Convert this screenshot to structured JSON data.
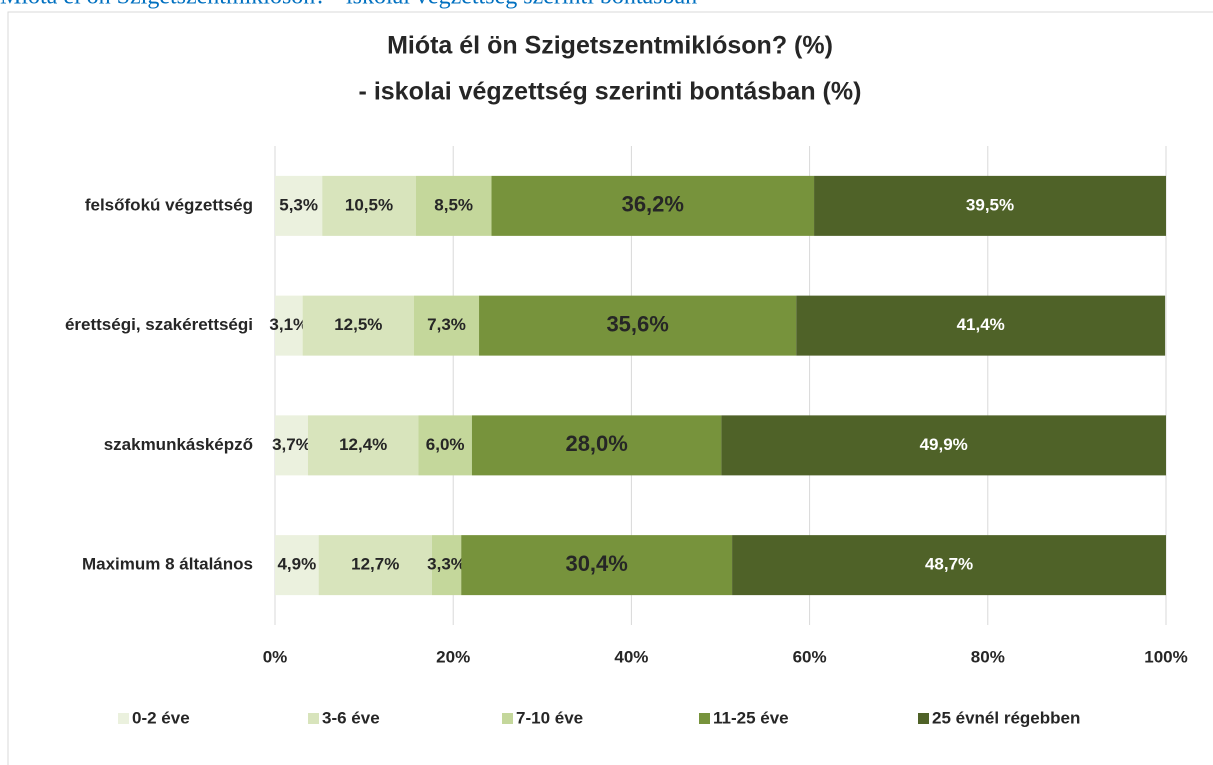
{
  "heading": "Mióta él ön Szigetszentmiklóson? - iskolai végzettség szerinti bontásban",
  "chart_data": {
    "type": "stacked_barh",
    "title": [
      "Mióta él ön Szigetszentmiklóson? (%)",
      "- iskolai végzettség szerinti bontásban (%)"
    ],
    "categories": [
      "felsőfokú végzettség",
      "érettségi, szakérettségi",
      "szakmunkásképző",
      "Maximum 8 általános"
    ],
    "series": [
      {
        "name": "0-2 éve",
        "color": "#ebf1de",
        "values": [
          5.3,
          3.1,
          3.7,
          4.9
        ],
        "value_labels": [
          "5,3%",
          "3,1%",
          "3,7%",
          "4,9%"
        ]
      },
      {
        "name": "3-6 éve",
        "color": "#d8e4bc",
        "values": [
          10.5,
          12.5,
          12.4,
          12.7
        ],
        "value_labels": [
          "10,5%",
          "12,5%",
          "12,4%",
          "12,7%"
        ]
      },
      {
        "name": "7-10 éve",
        "color": "#c4d79b",
        "values": [
          8.5,
          7.3,
          6.0,
          3.3
        ],
        "value_labels": [
          "8,5%",
          "7,3%",
          "6,0%",
          "3,3%"
        ]
      },
      {
        "name": "11-25 éve",
        "color": "#77933c",
        "values": [
          36.2,
          35.6,
          28.0,
          30.4
        ],
        "value_labels": [
          "36,2%",
          "35,6%",
          "28,0%",
          "30,4%"
        ]
      },
      {
        "name": "25 évnél régebben",
        "color": "#4f6228",
        "values": [
          39.5,
          41.4,
          49.9,
          48.7
        ],
        "value_labels": [
          "39,5%",
          "41,4%",
          "49,9%",
          "48,7%"
        ]
      }
    ],
    "xlim": [
      0,
      100
    ],
    "xticks": [
      {
        "value": 0,
        "label": "0%"
      },
      {
        "value": 20,
        "label": "20%"
      },
      {
        "value": 40,
        "label": "40%"
      },
      {
        "value": 60,
        "label": "60%"
      },
      {
        "value": 80,
        "label": "80%"
      },
      {
        "value": 100,
        "label": "100%"
      }
    ],
    "grid": true,
    "legend": "bottom"
  }
}
